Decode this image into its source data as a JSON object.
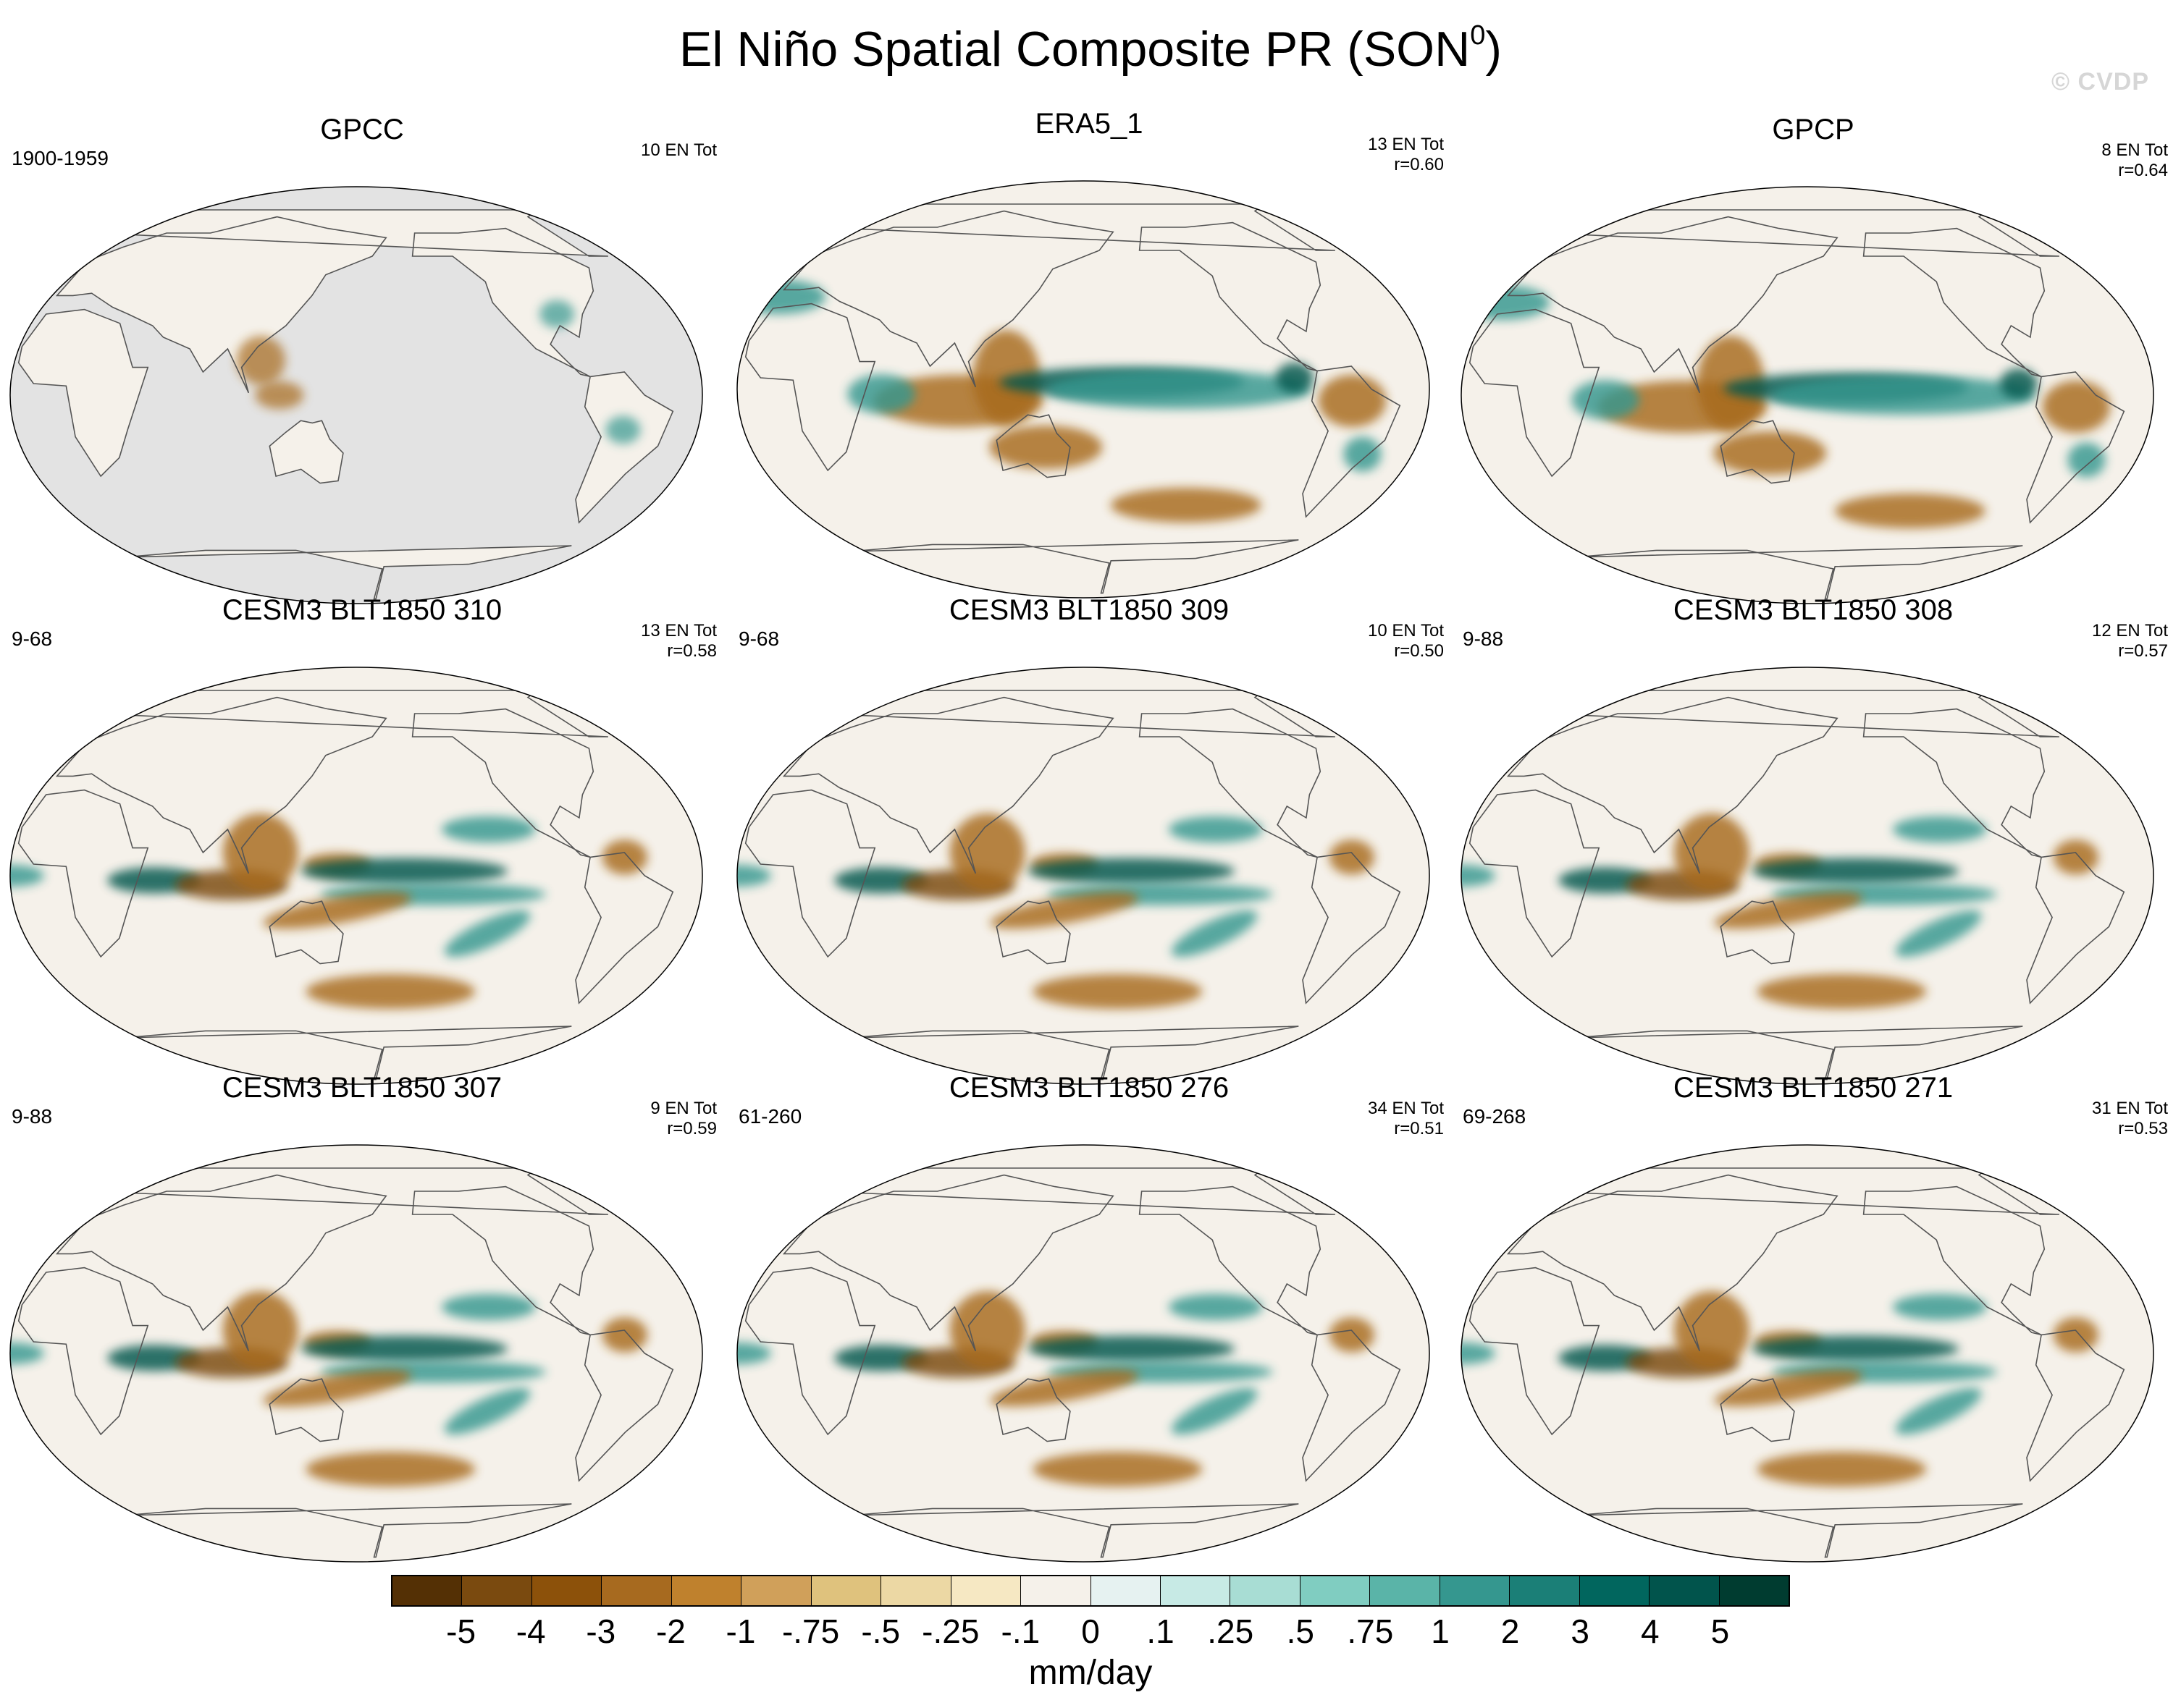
{
  "title": {
    "main": "El Niño Spatial Composite PR (SON",
    "sup": "0",
    "close": ")"
  },
  "watermark": "© CVDP",
  "panels": [
    {
      "title": "GPCC",
      "left": "1900-1959",
      "right1": "10 EN Tot",
      "right2": "",
      "type": "obs-land"
    },
    {
      "title": "ERA5_1",
      "left": "",
      "right1": "13 EN Tot",
      "right2": "r=0.60",
      "type": "obs"
    },
    {
      "title": "GPCP",
      "left": "",
      "right1": "8 EN Tot",
      "right2": "r=0.64",
      "type": "obs"
    },
    {
      "title": "CESM3 BLT1850 310",
      "left": "9-68",
      "right1": "13 EN Tot",
      "right2": "r=0.58",
      "type": "model"
    },
    {
      "title": "CESM3 BLT1850 309",
      "left": "9-68",
      "right1": "10 EN Tot",
      "right2": "r=0.50",
      "type": "model"
    },
    {
      "title": "CESM3 BLT1850 308",
      "left": "9-88",
      "right1": "12 EN Tot",
      "right2": "r=0.57",
      "type": "model"
    },
    {
      "title": "CESM3 BLT1850 307",
      "left": "9-88",
      "right1": "9 EN Tot",
      "right2": "r=0.59",
      "type": "model"
    },
    {
      "title": "CESM3 BLT1850 276",
      "left": "61-260",
      "right1": "34 EN Tot",
      "right2": "r=0.51",
      "type": "model"
    },
    {
      "title": "CESM3 BLT1850 271",
      "left": "69-268",
      "right1": "31 EN Tot",
      "right2": "r=0.53",
      "type": "model"
    }
  ],
  "colorbar": {
    "labels": [
      "-5",
      "-4",
      "-3",
      "-2",
      "-1",
      "-.75",
      "-.5",
      "-.25",
      "-.1",
      "0",
      ".1",
      ".25",
      ".5",
      ".75",
      "1",
      "2",
      "3",
      "4",
      "5"
    ],
    "colors": [
      "#543005",
      "#7a4a0f",
      "#8c510a",
      "#a76a1f",
      "#bf812d",
      "#d0a05a",
      "#dfc27d",
      "#ecd8a4",
      "#f6e8c3",
      "#f5f1ea",
      "#e6f2f1",
      "#c7eae5",
      "#a8ddd4",
      "#80cdc1",
      "#5ab4a8",
      "#35978f",
      "#1b7f77",
      "#01665e",
      "#01544c",
      "#003c30"
    ],
    "units": "mm/day"
  },
  "colors": {
    "ocean": "#f5f1ea",
    "land_missing": "#e3e3e3",
    "coast": "#555555",
    "drying": "#a76a1f",
    "strong_drying": "#7a4a0f",
    "wetting": "#35978f",
    "strong_wetting": "#01544c"
  }
}
